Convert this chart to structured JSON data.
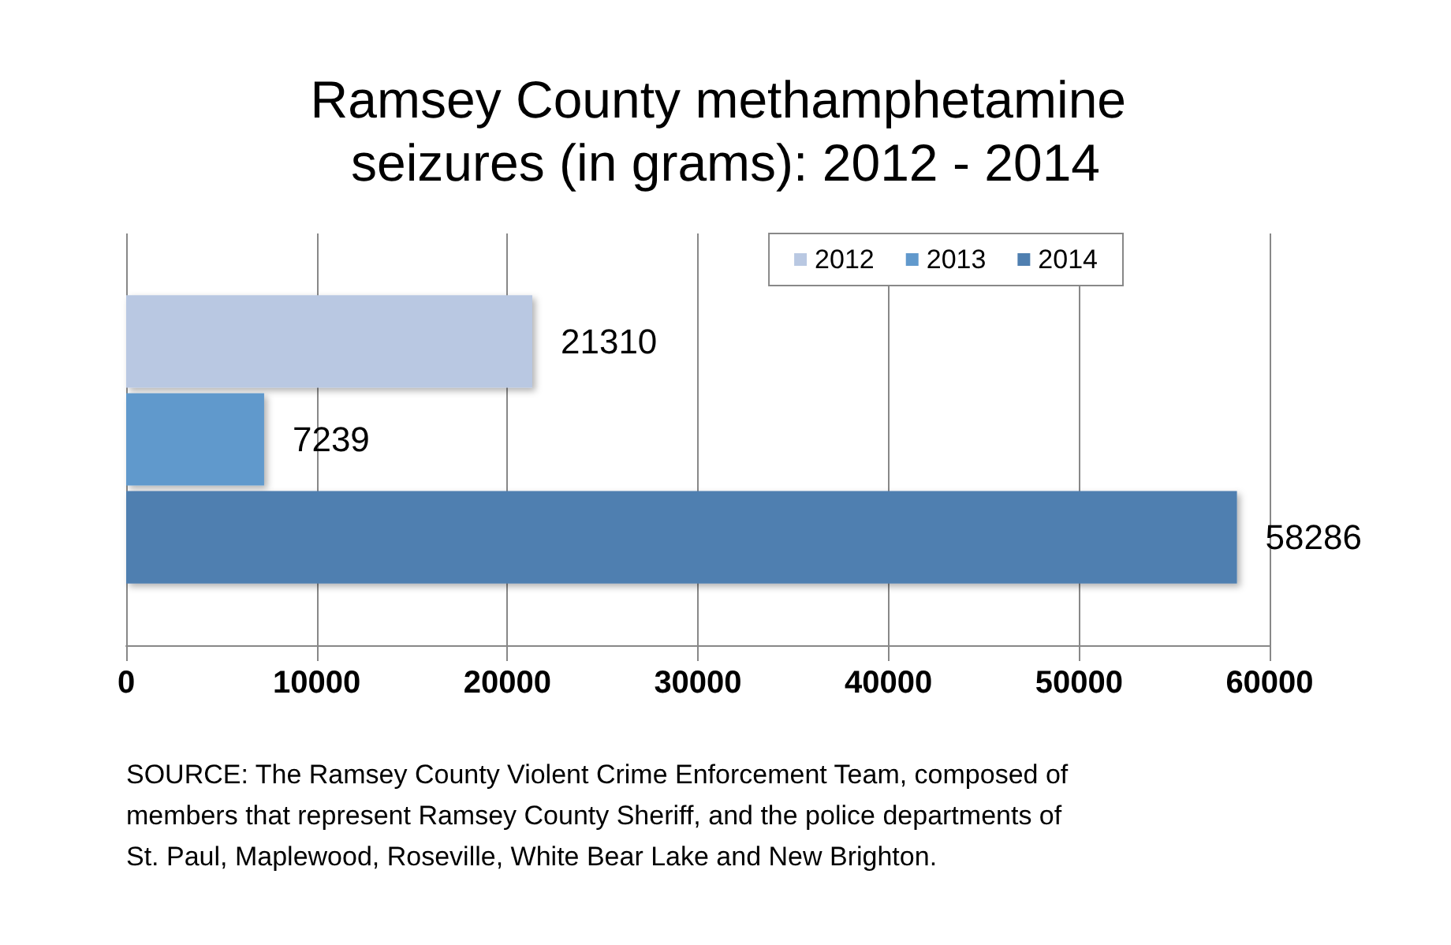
{
  "chart_data": {
    "type": "bar",
    "orientation": "horizontal",
    "title": "Ramsey County methamphetamine seizures (in grams): 2012 - 2014",
    "categories": [
      null
    ],
    "series": [
      {
        "name": "2012",
        "color": "#b9c8e2",
        "values": [
          21310
        ]
      },
      {
        "name": "2013",
        "color": "#6199cc",
        "values": [
          7239
        ]
      },
      {
        "name": "2014",
        "color": "#4f7fb0",
        "values": [
          58286
        ]
      }
    ],
    "xlim": [
      0,
      60000
    ],
    "xticks": [
      0,
      10000,
      20000,
      30000,
      40000,
      50000,
      60000
    ],
    "grid": "x",
    "legend": "top right",
    "data_labels": true,
    "annotations": [
      "SOURCE: The Ramsey County Violent Crime Enforcement Team, composed of members that represent Ramsey County Sheriff, and the police departments of St. Paul, Maplewood, Roseville, White Bear Lake and New Brighton."
    ]
  }
}
